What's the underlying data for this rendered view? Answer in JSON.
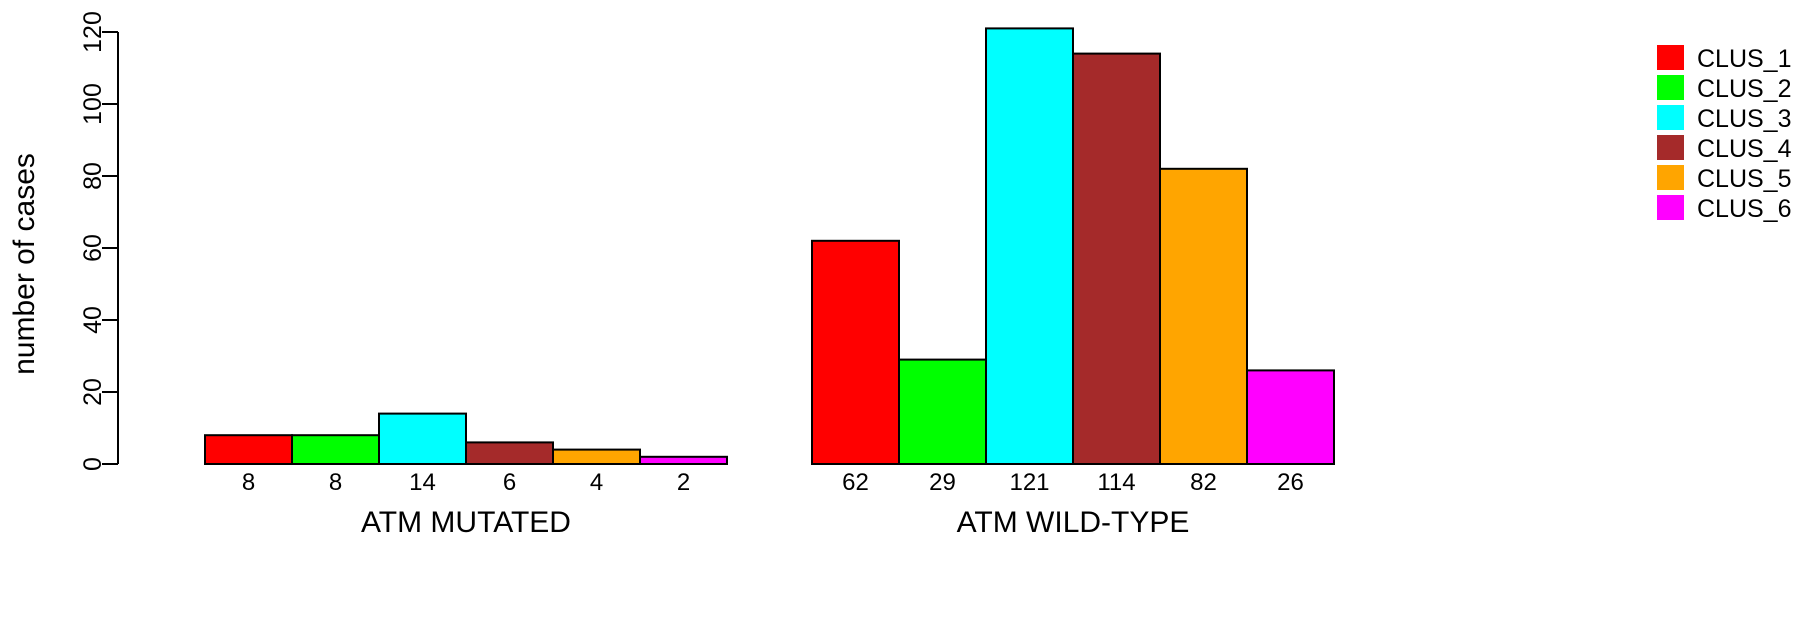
{
  "chart_data": {
    "type": "bar",
    "title": "",
    "xlabel": "",
    "ylabel": "number of cases",
    "ylim": [
      0,
      120
    ],
    "yticks": [
      0,
      20,
      40,
      60,
      80,
      100,
      120
    ],
    "grid": false,
    "legend_position": "top-right",
    "categories": [
      "ATM MUTATED",
      "ATM WILD-TYPE"
    ],
    "series": [
      {
        "name": "CLUS_1",
        "color": "#ff0000",
        "values": [
          8,
          62
        ]
      },
      {
        "name": "CLUS_2",
        "color": "#00ff00",
        "values": [
          8,
          29
        ]
      },
      {
        "name": "CLUS_3",
        "color": "#00ffff",
        "values": [
          14,
          121
        ]
      },
      {
        "name": "CLUS_4",
        "color": "#a52a2a",
        "values": [
          6,
          114
        ]
      },
      {
        "name": "CLUS_5",
        "color": "#ffa500",
        "values": [
          4,
          82
        ]
      },
      {
        "name": "CLUS_6",
        "color": "#ff00ff",
        "values": [
          2,
          26
        ]
      }
    ]
  }
}
